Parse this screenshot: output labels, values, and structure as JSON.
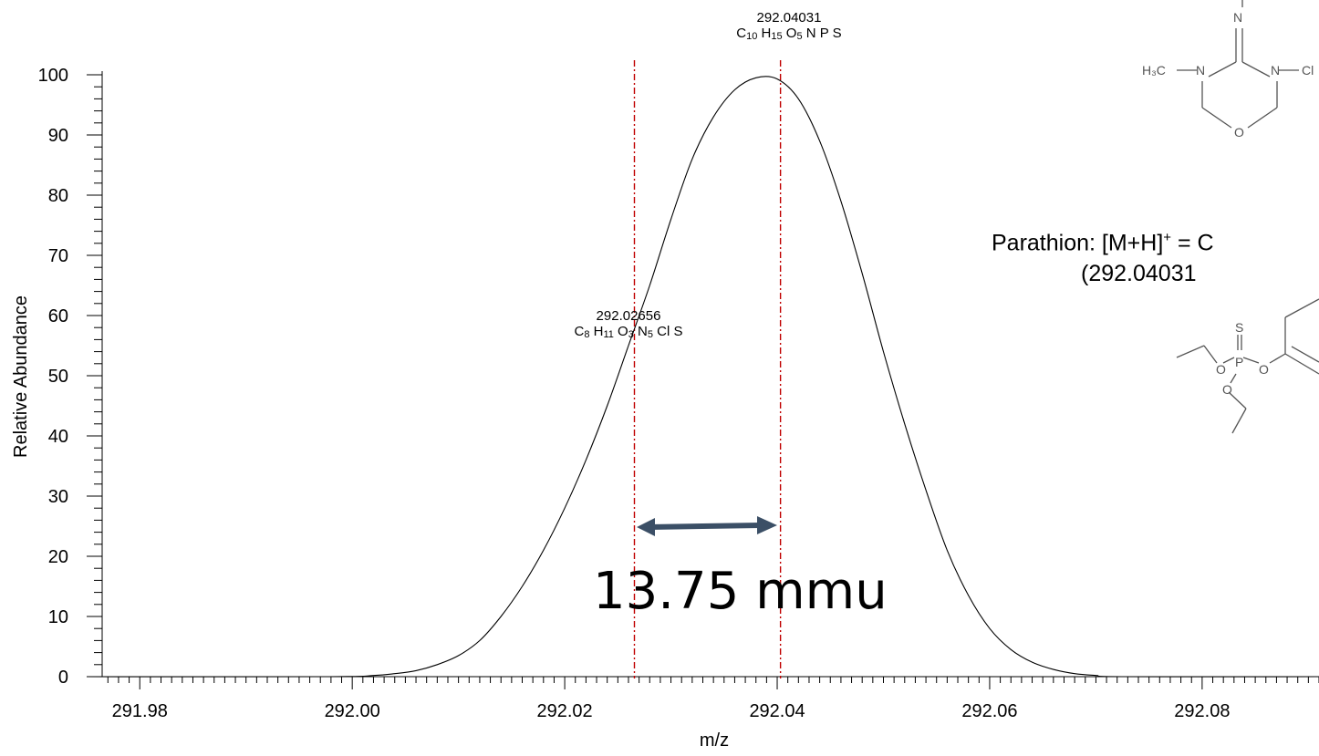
{
  "chart_data": {
    "type": "line",
    "xlabel": "m/z",
    "ylabel": "Relative Abundance",
    "xlim": [
      291.975,
      292.091
    ],
    "ylim": [
      0,
      100
    ],
    "x_ticks": [
      "291.98",
      "292.00",
      "292.02",
      "292.04",
      "292.06",
      "292.08"
    ],
    "x_tick_values": [
      291.98,
      292.0,
      292.02,
      292.04,
      292.06,
      292.08
    ],
    "y_ticks": [
      "0",
      "10",
      "20",
      "30",
      "40",
      "50",
      "60",
      "70",
      "80",
      "90",
      "100"
    ],
    "y_tick_values": [
      0,
      10,
      20,
      30,
      40,
      50,
      60,
      70,
      80,
      90,
      100
    ],
    "series": [
      {
        "x": [
          291.975,
          291.9978,
          292.002,
          292.004,
          292.006,
          292.008,
          292.01,
          292.012,
          292.014,
          292.016,
          292.018,
          292.02,
          292.022,
          292.024,
          292.026,
          292.028,
          292.03,
          292.032,
          292.034,
          292.036,
          292.038,
          292.04,
          292.042,
          292.044,
          292.046,
          292.048,
          292.05,
          292.052,
          292.054,
          292.056,
          292.058,
          292.06,
          292.062,
          292.064,
          292.066,
          292.068,
          292.07,
          292.0725,
          292.091
        ],
        "values": [
          0,
          0,
          0.2,
          0.5,
          1.0,
          2.0,
          3.5,
          6.0,
          10.0,
          15.0,
          21.0,
          28.0,
          36.0,
          45.0,
          55.0,
          65.0,
          76.0,
          86.0,
          93.0,
          97.5,
          99.5,
          99.3,
          96.0,
          89.0,
          79.0,
          67.0,
          54.0,
          42.0,
          31.0,
          21.0,
          13.5,
          8.0,
          4.5,
          2.4,
          1.2,
          0.5,
          0.2,
          0,
          0
        ]
      }
    ],
    "marker_lines": [
      {
        "x": 292.02656,
        "label_mz": "292.02656",
        "color": "#c00000"
      },
      {
        "x": 292.04031,
        "label_mz": "292.04031",
        "color": "#c00000"
      }
    ],
    "annotations": {
      "peak_left": {
        "mz": "292.02656",
        "formula": [
          [
            "C",
            "8"
          ],
          [
            "H",
            "11"
          ],
          [
            "O",
            "3"
          ],
          [
            "N",
            "5"
          ],
          [
            "Cl",
            ""
          ],
          [
            "S",
            ""
          ]
        ]
      },
      "peak_right": {
        "mz": "292.04031",
        "formula": [
          [
            "C",
            "10"
          ],
          [
            "H",
            "15"
          ],
          [
            "O",
            "5"
          ],
          [
            "N",
            ""
          ],
          [
            "P",
            ""
          ],
          [
            "S",
            ""
          ]
        ]
      },
      "delta": "13.75 mmu",
      "arrow_color": "#3b4f66",
      "parathion_line1_prefix": "Parathion: [M+H]",
      "parathion_line1_sup": "+",
      "parathion_line1_suffix": " = C",
      "parathion_line2": "(292.04031",
      "structure_top_labels": {
        "n_top": "N",
        "h3c": "H₃C",
        "n_left": "N",
        "n_right": "N",
        "cl": "Cl",
        "o": "O"
      },
      "structure_bottom_labels": {
        "s": "S",
        "p": "P",
        "o_left": "O",
        "o_right": "O",
        "o_bottom": "O"
      }
    }
  }
}
